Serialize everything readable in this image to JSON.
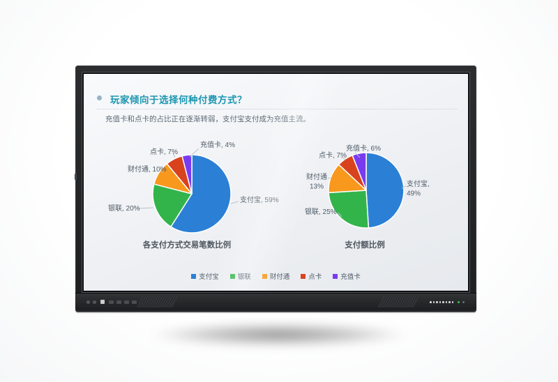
{
  "slide": {
    "title": "玩家倾向于选择何种付费方式？",
    "subtitle": "充值卡和点卡的占比正在逐渐转弱，支付宝支付成为充值主流。"
  },
  "chart_data": [
    {
      "type": "pie",
      "title": "各支付方式交易笔数比例",
      "unit": "%",
      "start_angle_deg": 0,
      "direction": "clockwise",
      "categories": [
        "支付宝",
        "银联",
        "财付通",
        "点卡",
        "充值卡"
      ],
      "values": [
        59,
        20,
        10,
        7,
        4
      ],
      "colors": [
        "#2b80d5",
        "#32b44b",
        "#f8981d",
        "#d8431d",
        "#7a3bf0"
      ],
      "data_labels": [
        [
          "支付宝, 59%"
        ],
        [
          "银联, 20%"
        ],
        [
          "财付通, 10%"
        ],
        [
          "点卡, 7%"
        ],
        [
          "充值卡, 4%"
        ]
      ]
    },
    {
      "type": "pie",
      "title": "支付额比例",
      "unit": "%",
      "start_angle_deg": 0,
      "direction": "clockwise",
      "categories": [
        "支付宝",
        "银联",
        "财付通",
        "点卡",
        "充值卡"
      ],
      "values": [
        49,
        25,
        13,
        7,
        6
      ],
      "colors": [
        "#2b80d5",
        "#32b44b",
        "#f8981d",
        "#d8431d",
        "#7a3bf0"
      ],
      "data_labels": [
        [
          "支付宝,",
          "49%"
        ],
        [
          "银联, 25%"
        ],
        [
          "财付通",
          "13%"
        ],
        [
          "点卡, 7%"
        ],
        [
          "充值卡, 6%"
        ]
      ]
    }
  ],
  "legend": {
    "position": "bottom-center",
    "items": [
      {
        "label": "支付宝",
        "color": "#2b80d5"
      },
      {
        "label": "银联",
        "color": "#32b44b"
      },
      {
        "label": "财付通",
        "color": "#f8981d"
      },
      {
        "label": "点卡",
        "color": "#d8431d"
      },
      {
        "label": "充值卡",
        "color": "#7a3bf0"
      }
    ]
  },
  "colors": {
    "title_accent": "#1b96b0",
    "subtitle_text": "#5d6a75",
    "label_text": "#4f5b67",
    "chart_title_text": "#4e565e",
    "leader_line": "#b9c2c9",
    "status_led": "#3ec24d"
  },
  "icons": {
    "title_bullet": "circle",
    "power_led": "green-dot",
    "speaker_grille": "hatched-slots",
    "indicator_dots": "dot-row"
  }
}
